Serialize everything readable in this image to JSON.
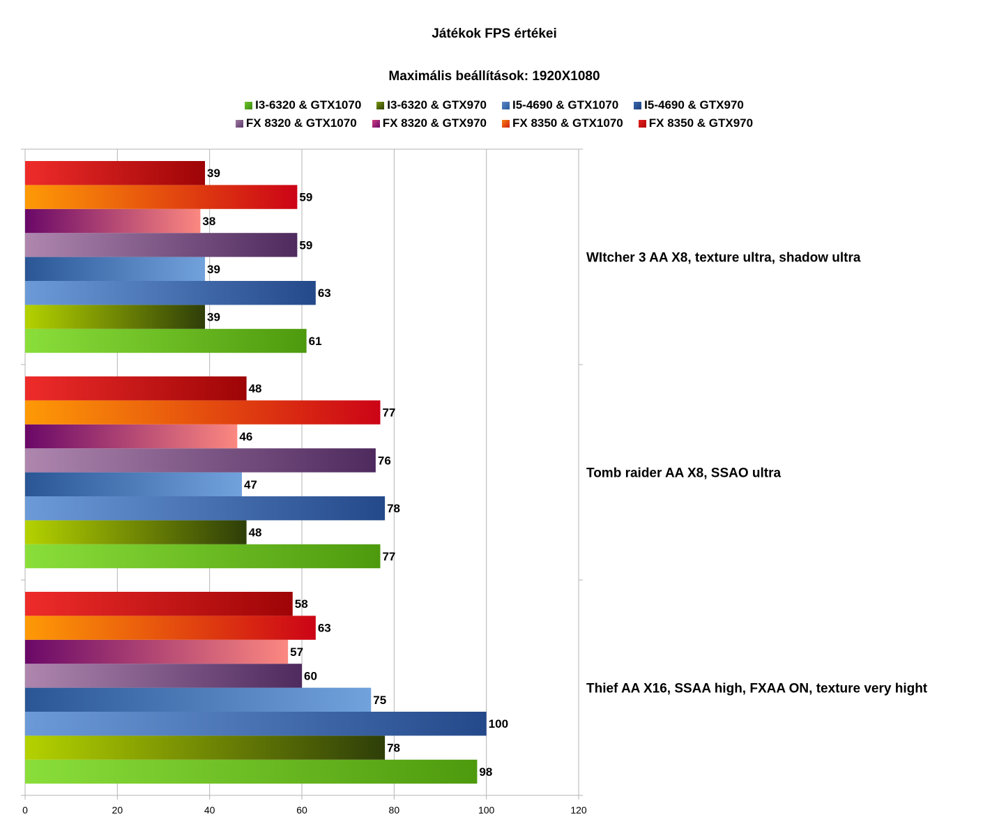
{
  "chart_data": {
    "type": "bar",
    "orientation": "horizontal",
    "title": "Játékok FPS értékei",
    "subtitle": "Maximális beállítások: 1920X1080",
    "categories": [
      "WItcher 3 AA X8, texture ultra, shadow ultra",
      "Tomb raider AA X8, SSAO ultra",
      "Thief AA X16, SSAA high, FXAA ON, texture very hight"
    ],
    "series": [
      {
        "name": "I3-6320 & GTX1070",
        "color": "#66b022",
        "values": [
          61,
          77,
          98
        ]
      },
      {
        "name": "I3-6320 & GTX970",
        "color": "#5a7a0a",
        "values": [
          39,
          48,
          78
        ]
      },
      {
        "name": "I5-4690 & GTX1070",
        "color": "#4a78b8",
        "values": [
          63,
          78,
          100
        ]
      },
      {
        "name": "I5-4690 & GTX970",
        "color": "#2e5a9a",
        "values": [
          39,
          47,
          75
        ]
      },
      {
        "name": "FX 8320 & GTX1070",
        "color": "#8a5a8a",
        "values": [
          59,
          76,
          60
        ]
      },
      {
        "name": "FX 8320 & GTX970",
        "color": "#b02a6a",
        "values": [
          38,
          46,
          57
        ]
      },
      {
        "name": "FX 8350 & GTX1070",
        "color": "#e85a10",
        "values": [
          59,
          77,
          63
        ]
      },
      {
        "name": "FX 8350 & GTX970",
        "color": "#d01818",
        "values": [
          39,
          48,
          58
        ]
      }
    ],
    "xlim": [
      0,
      120
    ],
    "xticks": [
      0,
      20,
      40,
      60,
      80,
      100,
      120
    ],
    "grid": true,
    "legend_position": "top"
  }
}
